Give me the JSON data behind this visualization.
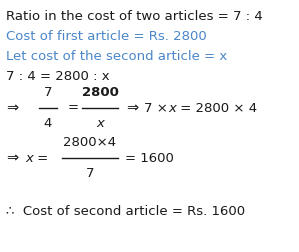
{
  "bg_color": "#ffffff",
  "black": "#1a1a1a",
  "blue": "#4a86c8",
  "figsize": [
    2.99,
    2.52
  ],
  "dpi": 100,
  "line1": "Ratio in the cost of two articles = 7 : 4",
  "line2": "Cost of first article = Rs. 2800",
  "line3": "Let cost of the second article = x",
  "line4_black": "7 : 4 = 2800 : x",
  "last_line": "∴  Cost of second article = Rs. 1600"
}
